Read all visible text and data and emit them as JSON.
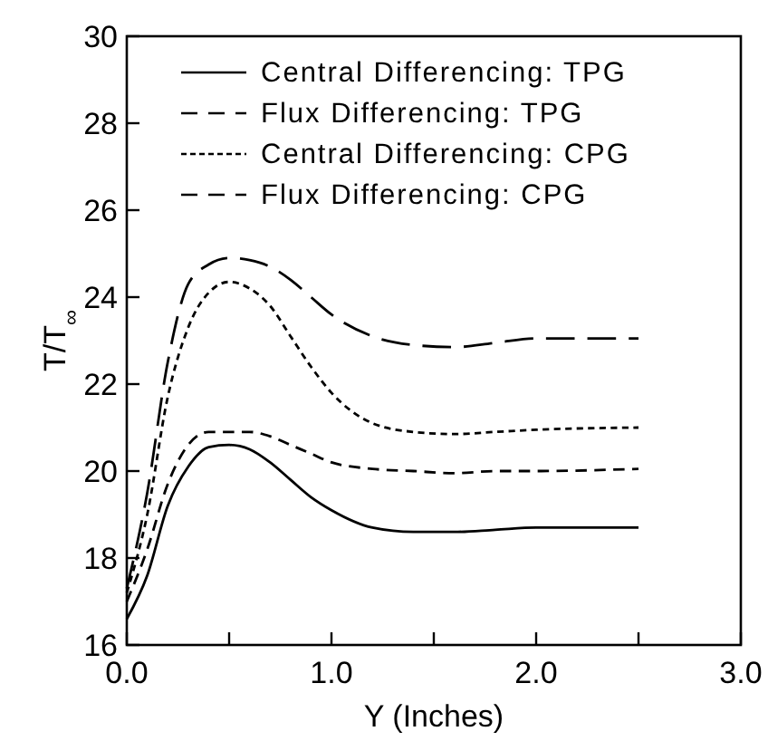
{
  "chart_data": {
    "type": "line",
    "xlabel": "Y (Inches)",
    "ylabel": "T/T$_{∞}$",
    "x": [
      0,
      0.1,
      0.2,
      0.3,
      0.4,
      0.5,
      0.6,
      0.7,
      0.8,
      0.9,
      1.0,
      1.2,
      1.4,
      1.6,
      1.8,
      2.0,
      2.5
    ],
    "series": [
      {
        "name": "Central Differencing: TPG",
        "color": "#000000",
        "line_style": "solid",
        "values": [
          16.6,
          17.6,
          19.2,
          20.1,
          20.55,
          20.6,
          20.5,
          20.2,
          19.8,
          19.4,
          19.1,
          18.7,
          18.6,
          18.6,
          18.65,
          18.7,
          18.7
        ]
      },
      {
        "name": "Flux Differencing: TPG",
        "color": "#000000",
        "line_style": "dashed",
        "values": [
          17.0,
          18.2,
          19.7,
          20.6,
          20.9,
          20.9,
          20.9,
          20.8,
          20.6,
          20.4,
          20.2,
          20.05,
          20.0,
          19.95,
          20.0,
          20.0,
          20.05
        ]
      },
      {
        "name": "Central Differencing: CPG",
        "color": "#000000",
        "line_style": "dotted",
        "values": [
          17.2,
          19.0,
          21.7,
          23.3,
          24.1,
          24.35,
          24.2,
          23.8,
          23.1,
          22.4,
          21.8,
          21.1,
          20.9,
          20.85,
          20.9,
          20.95,
          21.0
        ]
      },
      {
        "name": "Flux Differencing: CPG",
        "color": "#000000",
        "line_style": "dashed",
        "values": [
          17.3,
          19.5,
          22.5,
          24.3,
          24.75,
          24.9,
          24.85,
          24.7,
          24.4,
          24.0,
          23.6,
          23.1,
          22.9,
          22.85,
          22.95,
          23.05,
          23.05
        ]
      }
    ],
    "xlim": [
      0,
      3
    ],
    "xticks": [
      {
        "value": 0,
        "label": "0.0"
      },
      {
        "value": 0.5,
        "label": null
      },
      {
        "value": 1,
        "label": "1.0"
      },
      {
        "value": 1.5,
        "label": null
      },
      {
        "value": 2,
        "label": "2.0"
      },
      {
        "value": 2.5,
        "label": null
      },
      {
        "value": 3,
        "label": "3.0"
      }
    ],
    "ylim": [
      16,
      30
    ],
    "yticks": [
      16,
      18,
      20,
      22,
      24,
      26,
      28,
      30
    ],
    "grid": false,
    "legend": "top right",
    "marker": "none"
  }
}
